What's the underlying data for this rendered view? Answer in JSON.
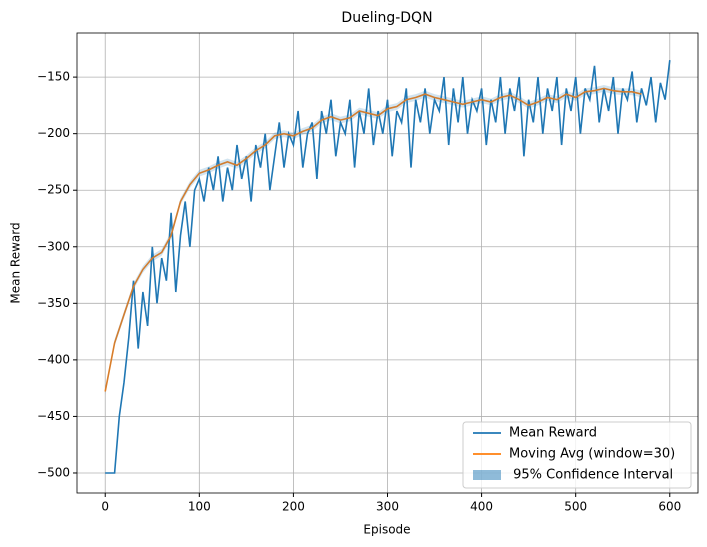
{
  "chart_data": {
    "type": "line",
    "title": "Dueling-DQN",
    "x_label": "Episode",
    "y_label": "Mean Reward",
    "xlim": [
      -30,
      630
    ],
    "ylim": [
      -517.7,
      -111
    ],
    "xticks": [
      0,
      100,
      200,
      300,
      400,
      500,
      600
    ],
    "yticks": [
      {
        "value": -500,
        "label": "−500"
      },
      {
        "value": -450,
        "label": "−450"
      },
      {
        "value": -400,
        "label": "−400"
      },
      {
        "value": -350,
        "label": "−350"
      },
      {
        "value": -300,
        "label": "−300"
      },
      {
        "value": -250,
        "label": "−250"
      },
      {
        "value": -200,
        "label": "−200"
      },
      {
        "value": -150,
        "label": "−150"
      }
    ],
    "grid": true,
    "legend": "lower right",
    "series": [
      {
        "name": "Mean Reward",
        "color": "#1f77b4",
        "x": [
          0,
          5,
          10,
          15,
          20,
          25,
          30,
          35,
          40,
          45,
          50,
          55,
          60,
          65,
          70,
          75,
          80,
          85,
          90,
          95,
          100,
          105,
          110,
          115,
          120,
          125,
          130,
          135,
          140,
          145,
          150,
          155,
          160,
          165,
          170,
          175,
          180,
          185,
          190,
          195,
          200,
          205,
          210,
          215,
          220,
          225,
          230,
          235,
          240,
          245,
          250,
          255,
          260,
          265,
          270,
          275,
          280,
          285,
          290,
          295,
          300,
          305,
          310,
          315,
          320,
          325,
          330,
          335,
          340,
          345,
          350,
          355,
          360,
          365,
          370,
          375,
          380,
          385,
          390,
          395,
          400,
          405,
          410,
          415,
          420,
          425,
          430,
          435,
          440,
          445,
          450,
          455,
          460,
          465,
          470,
          475,
          480,
          485,
          490,
          495,
          500,
          505,
          510,
          515,
          520,
          525,
          530,
          535,
          540,
          545,
          550,
          555,
          560,
          565,
          570,
          575,
          580,
          585,
          590,
          595,
          600
        ],
        "values": [
          -500,
          -500,
          -500,
          -450,
          -420,
          -380,
          -330,
          -390,
          -340,
          -370,
          -300,
          -350,
          -310,
          -330,
          -270,
          -340,
          -290,
          -260,
          -300,
          -250,
          -240,
          -260,
          -230,
          -250,
          -220,
          -260,
          -230,
          -250,
          -210,
          -240,
          -220,
          -260,
          -210,
          -230,
          -200,
          -250,
          -220,
          -190,
          -230,
          -200,
          -210,
          -180,
          -230,
          -200,
          -190,
          -240,
          -180,
          -200,
          -170,
          -220,
          -190,
          -200,
          -170,
          -230,
          -180,
          -200,
          -160,
          -210,
          -180,
          -200,
          -170,
          -220,
          -180,
          -190,
          -160,
          -230,
          -170,
          -190,
          -160,
          -200,
          -170,
          -180,
          -150,
          -210,
          -160,
          -190,
          -150,
          -200,
          -170,
          -180,
          -160,
          -210,
          -170,
          -190,
          -150,
          -200,
          -160,
          -180,
          -150,
          -220,
          -170,
          -190,
          -150,
          -200,
          -160,
          -180,
          -150,
          -210,
          -160,
          -180,
          -150,
          -200,
          -160,
          -170,
          -140,
          -190,
          -160,
          -180,
          -150,
          -200,
          -160,
          -170,
          -145,
          -190,
          -160,
          -175,
          -150,
          -190,
          -155,
          -170,
          -135
        ]
      },
      {
        "name": "Moving Avg (window=30)",
        "color": "#ff7f0e",
        "x": [
          0,
          10,
          20,
          30,
          40,
          50,
          60,
          70,
          80,
          90,
          100,
          110,
          120,
          130,
          140,
          150,
          160,
          170,
          180,
          190,
          200,
          210,
          220,
          230,
          240,
          250,
          260,
          270,
          280,
          290,
          300,
          310,
          320,
          330,
          340,
          350,
          360,
          370,
          380,
          390,
          400,
          410,
          420,
          430,
          440,
          450,
          460,
          470,
          480,
          490,
          500,
          510,
          520,
          530,
          540,
          550,
          560,
          570
        ],
        "values": [
          -428,
          -385,
          -360,
          -335,
          -320,
          -310,
          -305,
          -290,
          -260,
          -245,
          -235,
          -232,
          -228,
          -225,
          -228,
          -222,
          -215,
          -210,
          -202,
          -200,
          -202,
          -198,
          -195,
          -188,
          -185,
          -188,
          -186,
          -180,
          -182,
          -184,
          -178,
          -176,
          -170,
          -168,
          -165,
          -168,
          -170,
          -172,
          -174,
          -172,
          -170,
          -172,
          -168,
          -166,
          -170,
          -175,
          -172,
          -168,
          -170,
          -165,
          -168,
          -163,
          -162,
          -160,
          -162,
          -163,
          -163,
          -165
        ]
      },
      {
        "name": " 95% Confidence Interval",
        "color": "#1f77b4",
        "x": [
          0,
          10,
          20,
          30,
          40,
          50,
          60,
          70,
          80,
          90,
          100,
          110,
          120,
          130,
          140,
          150,
          160,
          170,
          180,
          190,
          200,
          210,
          220,
          230,
          240,
          250,
          260,
          270,
          280,
          290,
          300,
          310,
          320,
          330,
          340,
          350,
          360,
          370,
          380,
          390,
          400,
          410,
          420,
          430,
          440,
          450,
          460,
          470,
          480,
          490,
          500,
          510,
          520,
          530,
          540,
          550,
          560,
          570
        ],
        "lower": [
          -431,
          -388,
          -363,
          -338,
          -323,
          -313,
          -308,
          -293,
          -263,
          -248,
          -238,
          -235,
          -231,
          -228,
          -231,
          -225,
          -218,
          -213,
          -205,
          -203,
          -205,
          -201,
          -198,
          -191,
          -188,
          -191,
          -189,
          -183,
          -185,
          -187,
          -181,
          -179,
          -173,
          -171,
          -168,
          -171,
          -173,
          -175,
          -177,
          -175,
          -173,
          -175,
          -171,
          -169,
          -173,
          -178,
          -175,
          -171,
          -173,
          -168,
          -171,
          -166,
          -165,
          -163,
          -165,
          -166,
          -166,
          -168
        ],
        "upper": [
          -425,
          -382,
          -357,
          -332,
          -317,
          -307,
          -302,
          -287,
          -257,
          -242,
          -232,
          -229,
          -225,
          -222,
          -225,
          -219,
          -212,
          -207,
          -199,
          -197,
          -199,
          -195,
          -192,
          -185,
          -182,
          -185,
          -183,
          -177,
          -179,
          -181,
          -175,
          -173,
          -167,
          -165,
          -162,
          -165,
          -167,
          -169,
          -171,
          -169,
          -167,
          -169,
          -165,
          -163,
          -167,
          -172,
          -169,
          -165,
          -167,
          -162,
          -165,
          -160,
          -159,
          -157,
          -159,
          -160,
          -160,
          -162
        ]
      }
    ]
  }
}
